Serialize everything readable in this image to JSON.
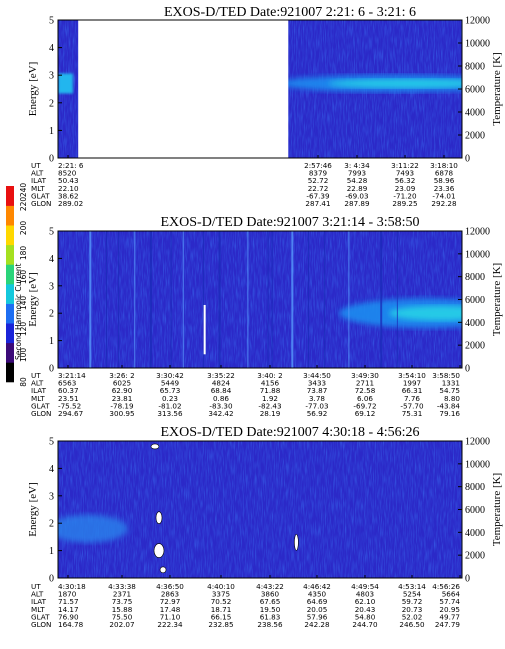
{
  "colorbar": {
    "label": "Second Harmonic Current",
    "ticks": [
      "80",
      "100",
      "120",
      "140",
      "160",
      "180",
      "200",
      "220",
      "240"
    ],
    "colors": [
      "#000000",
      "#3b0a78",
      "#1a24d8",
      "#1d6ef2",
      "#14c8dc",
      "#2ad47a",
      "#a5e020",
      "#ffd800",
      "#ff8800",
      "#e81010"
    ]
  },
  "chart_data": [
    {
      "type": "heatmap",
      "title": "EXOS-D/TED   Date:921007  2:21: 6 - 3:21: 6",
      "ylabel": "Energy [eV]",
      "y2label": "Temperature [K]",
      "ylim": [
        0,
        5
      ],
      "yticks": [
        "0",
        "1",
        "2",
        "3",
        "4",
        "5"
      ],
      "y2lim": [
        0,
        12000
      ],
      "y2ticks": [
        "0",
        "2000",
        "4000",
        "6000",
        "8000",
        "10000",
        "12000"
      ],
      "data_gaps": [
        [
          0.05,
          0.57
        ]
      ],
      "high_band": {
        "start": 0.57,
        "energy_center": 2.7,
        "energy_width": 0.35
      },
      "orbit_labels": [
        "UT",
        "ALT",
        "ILAT",
        "MLT",
        "GLAT",
        "GLON"
      ],
      "orbit_columns": [
        {
          "values": [
            "2:21: 6",
            "8520",
            "50.43",
            "22.10",
            "38.62",
            "289.02"
          ]
        },
        {
          "values": [
            "2:57:46",
            "8379",
            "52.72",
            "22.72",
            "-67.39",
            "287.41"
          ]
        },
        {
          "values": [
            "3: 4:34",
            "7993",
            "54.28",
            "22.89",
            "-69.03",
            "287.89"
          ]
        },
        {
          "values": [
            "3:11:22",
            "7493",
            "56.32",
            "23.09",
            "-71.20",
            "289.25"
          ]
        },
        {
          "values": [
            "3:18:10",
            "6878",
            "58.96",
            "23.36",
            "-74.01",
            "292.28"
          ]
        }
      ]
    },
    {
      "type": "heatmap",
      "title": "EXOS-D/TED   Date:921007  3:21:14 - 3:58:50",
      "ylabel": "Energy [eV]",
      "y2label": "Temperature [K]",
      "ylim": [
        0,
        5
      ],
      "yticks": [
        "0",
        "1",
        "2",
        "3",
        "4",
        "5"
      ],
      "y2lim": [
        0,
        12000
      ],
      "y2ticks": [
        "0",
        "2000",
        "4000",
        "6000",
        "8000",
        "10000",
        "12000"
      ],
      "high_band": {
        "start": 0.72,
        "energy_center": 2.0,
        "energy_width": 0.6
      },
      "orbit_labels": [
        "UT",
        "ALT",
        "ILAT",
        "MLT",
        "GLAT",
        "GLON"
      ],
      "orbit_columns": [
        {
          "values": [
            "3:21:14",
            "6563",
            "60.37",
            "23.51",
            "-75.52",
            "294.67"
          ]
        },
        {
          "values": [
            "3:26: 2",
            "6025",
            "62.90",
            "23.81",
            "-78.19",
            "300.95"
          ]
        },
        {
          "values": [
            "3:30:42",
            "5449",
            "65.73",
            "0.23",
            "-81.02",
            "313.56"
          ]
        },
        {
          "values": [
            "3:35:22",
            "4824",
            "68.84",
            "0.86",
            "-83.30",
            "342.42"
          ]
        },
        {
          "values": [
            "3:40: 2",
            "4156",
            "71.88",
            "1.92",
            "-82.43",
            "28.19"
          ]
        },
        {
          "values": [
            "3:44:50",
            "3433",
            "73.87",
            "3.78",
            "-77.03",
            "56.92"
          ]
        },
        {
          "values": [
            "3:49:30",
            "2711",
            "72.58",
            "6.06",
            "-69.72",
            "69.12"
          ]
        },
        {
          "values": [
            "3:54:10",
            "1997",
            "66.31",
            "7.76",
            "-57.70",
            "75.31"
          ]
        },
        {
          "values": [
            "3:58:50",
            "1331",
            "54.75",
            "8.80",
            "-43.84",
            "79.16"
          ]
        }
      ]
    },
    {
      "type": "heatmap",
      "title": "EXOS-D/TED   Date:921007  4:30:18 - 4:56:26",
      "ylabel": "Energy [eV]",
      "y2label": "Temperature [K]",
      "ylim": [
        0,
        5
      ],
      "yticks": [
        "0",
        "1",
        "2",
        "3",
        "4",
        "5"
      ],
      "y2lim": [
        0,
        12000
      ],
      "y2ticks": [
        "0",
        "2000",
        "4000",
        "6000",
        "8000",
        "10000",
        "12000"
      ],
      "orbit_labels": [
        "UT",
        "ALT",
        "ILAT",
        "MLT",
        "GLAT",
        "GLON"
      ],
      "orbit_columns": [
        {
          "values": [
            "4:30:18",
            "1870",
            "71.57",
            "14.17",
            "76.90",
            "164.78"
          ]
        },
        {
          "values": [
            "4:33:38",
            "2371",
            "73.75",
            "15.88",
            "75.50",
            "202.07"
          ]
        },
        {
          "values": [
            "4:36:50",
            "2863",
            "72.97",
            "17.48",
            "71.10",
            "222.34"
          ]
        },
        {
          "values": [
            "4:40:10",
            "3375",
            "70.52",
            "18.71",
            "66.15",
            "232.85"
          ]
        },
        {
          "values": [
            "4:43:22",
            "3860",
            "67.65",
            "19.50",
            "61.83",
            "238.56"
          ]
        },
        {
          "values": [
            "4:46:42",
            "4350",
            "64.69",
            "20.05",
            "57.96",
            "242.28"
          ]
        },
        {
          "values": [
            "4:49:54",
            "4803",
            "62.10",
            "20.43",
            "54.80",
            "244.70"
          ]
        },
        {
          "values": [
            "4:53:14",
            "5254",
            "59.72",
            "20.73",
            "52.02",
            "246.50"
          ]
        },
        {
          "values": [
            "4:56:26",
            "5664",
            "57.74",
            "20.95",
            "49.77",
            "247.79"
          ]
        }
      ]
    }
  ]
}
